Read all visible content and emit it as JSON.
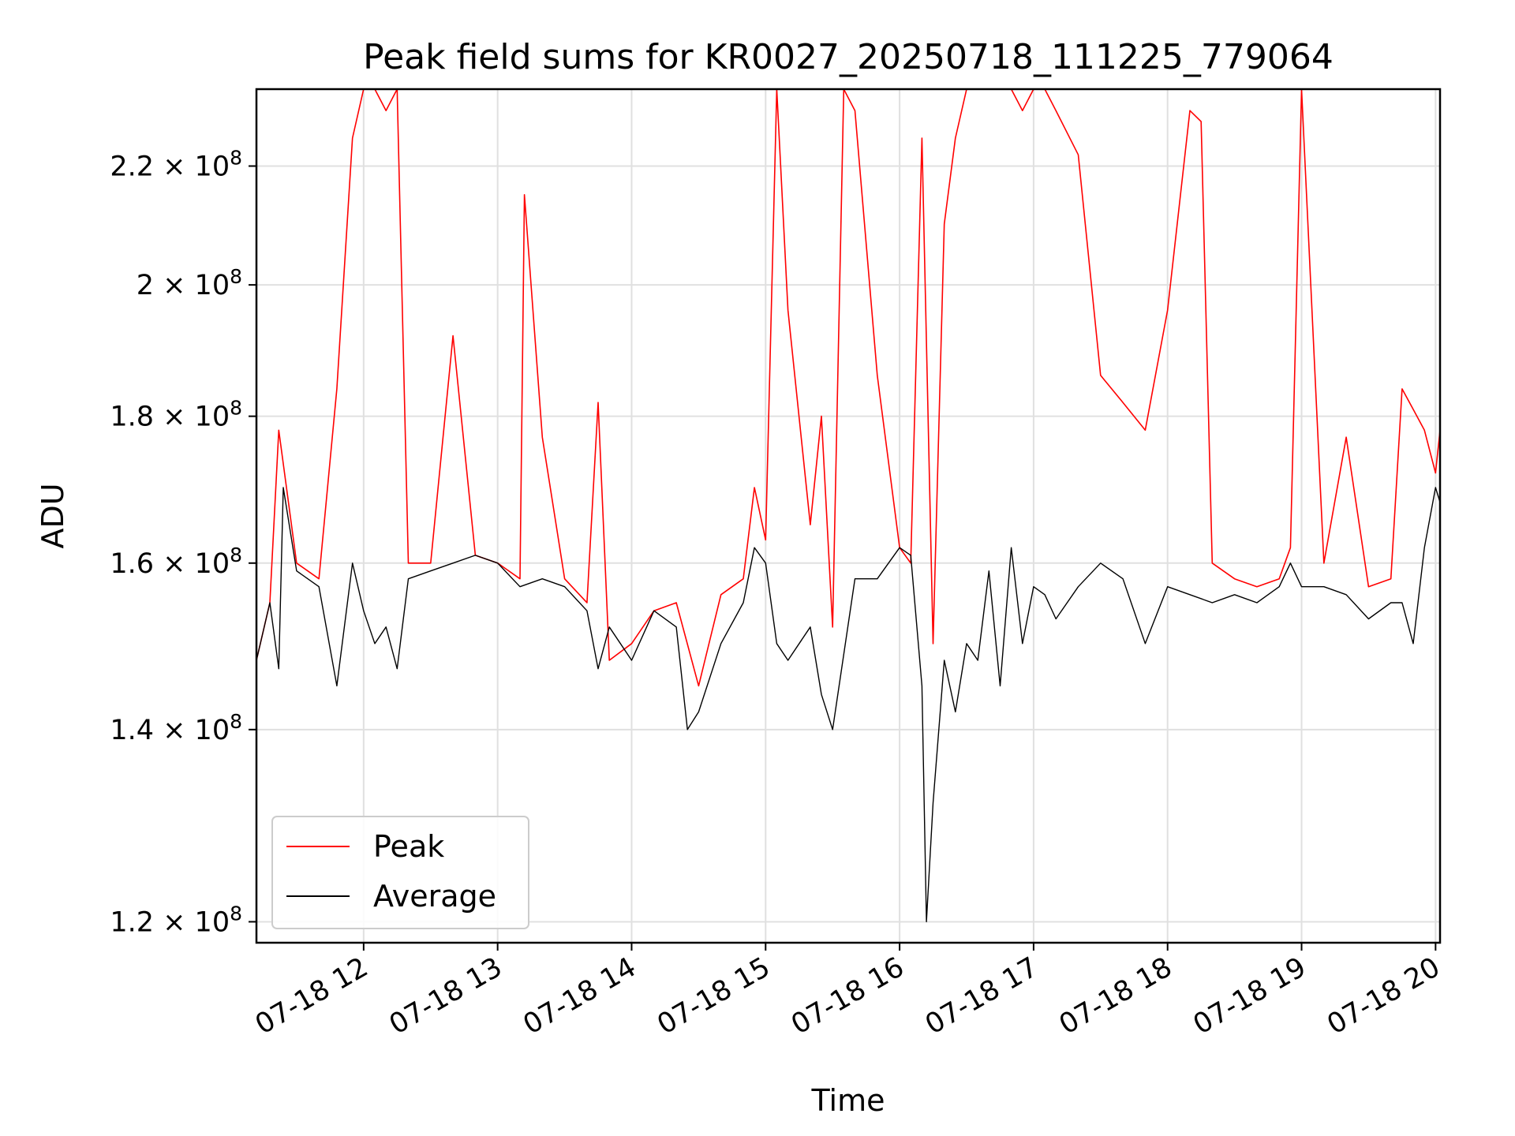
{
  "chart_data": {
    "type": "line",
    "title": "Peak field sums for KR0027_20250718_111225_779064",
    "xlabel": "Time",
    "ylabel": "ADU",
    "y_scale": "log",
    "ylim": [
      118000000,
      234000000
    ],
    "xlim": [
      "2025-07-18 11:12",
      "2025-07-18 20:02"
    ],
    "x_ticks": [
      {
        "t": "2025-07-18 12:00",
        "label": "07-18 12"
      },
      {
        "t": "2025-07-18 13:00",
        "label": "07-18 13"
      },
      {
        "t": "2025-07-18 14:00",
        "label": "07-18 14"
      },
      {
        "t": "2025-07-18 15:00",
        "label": "07-18 15"
      },
      {
        "t": "2025-07-18 16:00",
        "label": "07-18 16"
      },
      {
        "t": "2025-07-18 17:00",
        "label": "07-18 17"
      },
      {
        "t": "2025-07-18 18:00",
        "label": "07-18 18"
      },
      {
        "t": "2025-07-18 19:00",
        "label": "07-18 19"
      },
      {
        "t": "2025-07-18 20:00",
        "label": "07-18 20"
      }
    ],
    "y_ticks": [
      {
        "value": 120000000,
        "mantissa": "1.2",
        "exponent": "8"
      },
      {
        "value": 140000000,
        "mantissa": "1.4",
        "exponent": "8"
      },
      {
        "value": 160000000,
        "mantissa": "1.6",
        "exponent": "8"
      },
      {
        "value": 180000000,
        "mantissa": "1.8",
        "exponent": "8"
      },
      {
        "value": 200000000,
        "mantissa": "2",
        "exponent": "8"
      },
      {
        "value": 220000000,
        "mantissa": "2.2",
        "exponent": "8"
      }
    ],
    "grid": true,
    "legend_position": "lower-left",
    "series": [
      {
        "name": "Peak",
        "color": "#ff0000",
        "x": [
          "2025-07-18 11:12",
          "2025-07-18 11:18",
          "2025-07-18 11:22",
          "2025-07-18 11:30",
          "2025-07-18 11:40",
          "2025-07-18 11:48",
          "2025-07-18 11:55",
          "2025-07-18 12:00",
          "2025-07-18 12:05",
          "2025-07-18 12:10",
          "2025-07-18 12:15",
          "2025-07-18 12:20",
          "2025-07-18 12:30",
          "2025-07-18 12:40",
          "2025-07-18 12:50",
          "2025-07-18 13:00",
          "2025-07-18 13:10",
          "2025-07-18 13:12",
          "2025-07-18 13:20",
          "2025-07-18 13:30",
          "2025-07-18 13:40",
          "2025-07-18 13:45",
          "2025-07-18 13:50",
          "2025-07-18 14:00",
          "2025-07-18 14:10",
          "2025-07-18 14:20",
          "2025-07-18 14:30",
          "2025-07-18 14:40",
          "2025-07-18 14:50",
          "2025-07-18 14:55",
          "2025-07-18 15:00",
          "2025-07-18 15:05",
          "2025-07-18 15:10",
          "2025-07-18 15:20",
          "2025-07-18 15:25",
          "2025-07-18 15:30",
          "2025-07-18 15:35",
          "2025-07-18 15:40",
          "2025-07-18 15:50",
          "2025-07-18 16:00",
          "2025-07-18 16:05",
          "2025-07-18 16:10",
          "2025-07-18 16:15",
          "2025-07-18 16:20",
          "2025-07-18 16:25",
          "2025-07-18 16:30",
          "2025-07-18 16:35",
          "2025-07-18 16:40",
          "2025-07-18 16:45",
          "2025-07-18 16:50",
          "2025-07-18 16:55",
          "2025-07-18 17:00",
          "2025-07-18 17:05",
          "2025-07-18 17:10",
          "2025-07-18 17:20",
          "2025-07-18 17:30",
          "2025-07-18 17:40",
          "2025-07-18 17:50",
          "2025-07-18 18:00",
          "2025-07-18 18:10",
          "2025-07-18 18:15",
          "2025-07-18 18:20",
          "2025-07-18 18:30",
          "2025-07-18 18:40",
          "2025-07-18 18:50",
          "2025-07-18 18:55",
          "2025-07-18 19:00",
          "2025-07-18 19:10",
          "2025-07-18 19:20",
          "2025-07-18 19:30",
          "2025-07-18 19:40",
          "2025-07-18 19:45",
          "2025-07-18 19:50",
          "2025-07-18 19:55",
          "2025-07-18 20:00",
          "2025-07-18 20:02"
        ],
        "values": [
          148000000,
          155000000,
          178000000,
          160000000,
          158000000,
          184000000,
          225000000,
          240000000,
          235000000,
          230000000,
          240000000,
          160000000,
          160000000,
          192000000,
          161000000,
          160000000,
          158000000,
          215000000,
          177000000,
          158000000,
          155000000,
          182000000,
          148000000,
          150000000,
          154000000,
          155000000,
          145000000,
          156000000,
          158000000,
          170000000,
          163000000,
          240000000,
          196000000,
          165000000,
          180000000,
          152000000,
          240000000,
          230000000,
          186000000,
          162000000,
          160000000,
          225000000,
          150000000,
          210000000,
          225000000,
          240000000,
          235000000,
          240000000,
          240000000,
          235000000,
          230000000,
          240000000,
          240000000,
          230000000,
          222000000,
          186000000,
          182000000,
          178000000,
          196000000,
          230000000,
          228000000,
          160000000,
          158000000,
          157000000,
          158000000,
          162000000,
          240000000,
          160000000,
          177000000,
          157000000,
          158000000,
          184000000,
          181000000,
          178000000,
          172000000,
          178000000
        ]
      },
      {
        "name": "Average",
        "color": "#000000",
        "x": [
          "2025-07-18 11:12",
          "2025-07-18 11:18",
          "2025-07-18 11:22",
          "2025-07-18 11:24",
          "2025-07-18 11:30",
          "2025-07-18 11:40",
          "2025-07-18 11:48",
          "2025-07-18 11:55",
          "2025-07-18 12:00",
          "2025-07-18 12:05",
          "2025-07-18 12:10",
          "2025-07-18 12:15",
          "2025-07-18 12:20",
          "2025-07-18 12:30",
          "2025-07-18 12:40",
          "2025-07-18 12:50",
          "2025-07-18 13:00",
          "2025-07-18 13:10",
          "2025-07-18 13:20",
          "2025-07-18 13:30",
          "2025-07-18 13:40",
          "2025-07-18 13:45",
          "2025-07-18 13:50",
          "2025-07-18 14:00",
          "2025-07-18 14:10",
          "2025-07-18 14:20",
          "2025-07-18 14:25",
          "2025-07-18 14:30",
          "2025-07-18 14:40",
          "2025-07-18 14:50",
          "2025-07-18 14:55",
          "2025-07-18 15:00",
          "2025-07-18 15:05",
          "2025-07-18 15:10",
          "2025-07-18 15:20",
          "2025-07-18 15:25",
          "2025-07-18 15:30",
          "2025-07-18 15:40",
          "2025-07-18 15:50",
          "2025-07-18 16:00",
          "2025-07-18 16:05",
          "2025-07-18 16:10",
          "2025-07-18 16:12",
          "2025-07-18 16:15",
          "2025-07-18 16:20",
          "2025-07-18 16:25",
          "2025-07-18 16:30",
          "2025-07-18 16:35",
          "2025-07-18 16:40",
          "2025-07-18 16:45",
          "2025-07-18 16:50",
          "2025-07-18 16:55",
          "2025-07-18 17:00",
          "2025-07-18 17:05",
          "2025-07-18 17:10",
          "2025-07-18 17:20",
          "2025-07-18 17:30",
          "2025-07-18 17:40",
          "2025-07-18 17:50",
          "2025-07-18 18:00",
          "2025-07-18 18:10",
          "2025-07-18 18:20",
          "2025-07-18 18:30",
          "2025-07-18 18:40",
          "2025-07-18 18:50",
          "2025-07-18 18:55",
          "2025-07-18 19:00",
          "2025-07-18 19:10",
          "2025-07-18 19:20",
          "2025-07-18 19:30",
          "2025-07-18 19:40",
          "2025-07-18 19:45",
          "2025-07-18 19:50",
          "2025-07-18 19:55",
          "2025-07-18 20:00",
          "2025-07-18 20:02"
        ],
        "values": [
          148000000,
          155000000,
          147000000,
          170000000,
          159000000,
          157000000,
          145000000,
          160000000,
          154000000,
          150000000,
          152000000,
          147000000,
          158000000,
          159000000,
          160000000,
          161000000,
          160000000,
          157000000,
          158000000,
          157000000,
          154000000,
          147000000,
          152000000,
          148000000,
          154000000,
          152000000,
          140000000,
          142000000,
          150000000,
          155000000,
          162000000,
          160000000,
          150000000,
          148000000,
          152000000,
          144000000,
          140000000,
          158000000,
          158000000,
          162000000,
          161000000,
          145000000,
          120000000,
          132000000,
          148000000,
          142000000,
          150000000,
          148000000,
          159000000,
          145000000,
          162000000,
          150000000,
          157000000,
          156000000,
          153000000,
          157000000,
          160000000,
          158000000,
          150000000,
          157000000,
          156000000,
          155000000,
          156000000,
          155000000,
          157000000,
          160000000,
          157000000,
          157000000,
          156000000,
          153000000,
          155000000,
          155000000,
          150000000,
          162000000,
          170000000,
          168000000
        ]
      }
    ]
  }
}
